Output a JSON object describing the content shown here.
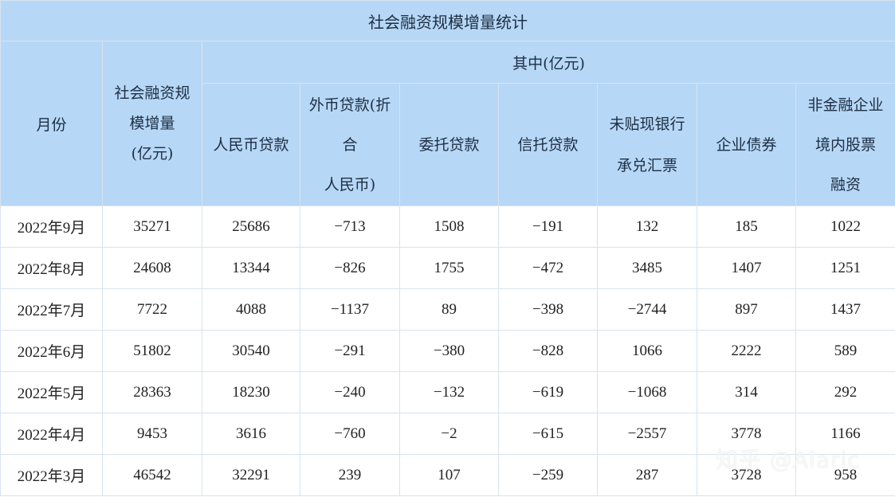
{
  "title": "社会融资规模增量统计",
  "header": {
    "month": "月份",
    "total": [
      "社会融资规",
      "模增量",
      "(亿元)"
    ],
    "group": "其中(亿元)",
    "cols": [
      [
        "人民币贷款"
      ],
      [
        "外币贷款(折",
        "合",
        "人民币)"
      ],
      [
        "委托贷款"
      ],
      [
        "信托贷款"
      ],
      [
        "未贴现银行",
        "承兑汇票"
      ],
      [
        "企业债券"
      ],
      [
        "非金融企业",
        "境内股票",
        "融资"
      ]
    ]
  },
  "rows": [
    [
      "2022年9月",
      "35271",
      "25686",
      "−713",
      "1508",
      "−191",
      "132",
      "185",
      "1022"
    ],
    [
      "2022年8月",
      "24608",
      "13344",
      "−826",
      "1755",
      "−472",
      "3485",
      "1407",
      "1251"
    ],
    [
      "2022年7月",
      "7722",
      "4088",
      "−1137",
      "89",
      "−398",
      "−2744",
      "897",
      "1437"
    ],
    [
      "2022年6月",
      "51802",
      "30540",
      "−291",
      "−380",
      "−828",
      "1066",
      "2222",
      "589"
    ],
    [
      "2022年5月",
      "28363",
      "18230",
      "−240",
      "−132",
      "−619",
      "−1068",
      "314",
      "292"
    ],
    [
      "2022年4月",
      "9453",
      "3616",
      "−760",
      "−2",
      "−615",
      "−2557",
      "3778",
      "1166"
    ],
    [
      "2022年3月",
      "46542",
      "32291",
      "239",
      "107",
      "−259",
      "287",
      "3728",
      "958"
    ]
  ],
  "watermark": "知乎 @Alaric",
  "colors": {
    "header_bg": "#b7d7f6",
    "border": "#d7e3f0"
  }
}
